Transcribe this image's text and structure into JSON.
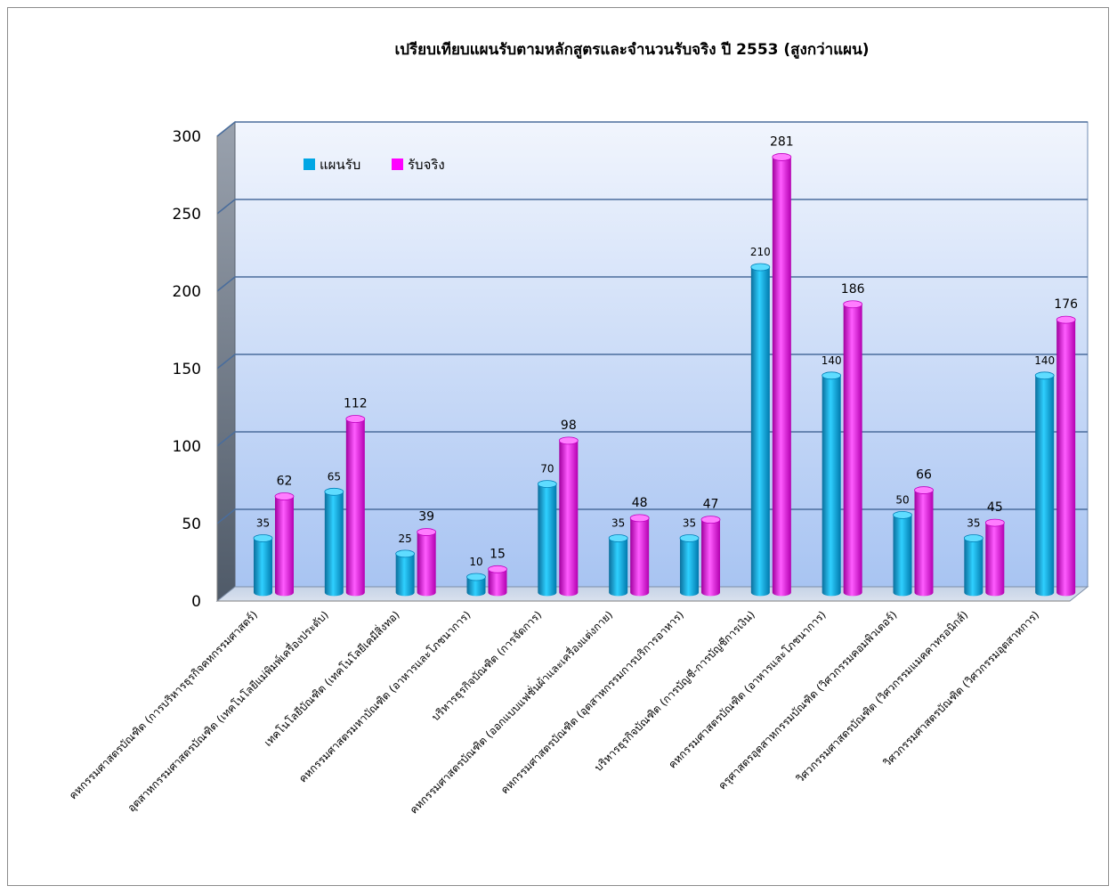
{
  "chart_data": {
    "type": "bar",
    "title": "เปรียบเทียบแผนรับตามหลักสูตรและจำนวนรับจริง ปี 2553 (สูงกว่าแผน)",
    "xlabel": "",
    "ylabel": "",
    "ylim": [
      0,
      300
    ],
    "yticks": [
      "0",
      "50",
      "100",
      "150",
      "200",
      "250",
      "300"
    ],
    "grid": true,
    "legend_position": "top-left",
    "categories": [
      "คหกรรมศาสตรบัณฑิต (การบริหารธุรกิจคหกรรมศาสตร์)",
      "อุตสาหกรรมศาสตรบัณฑิต (เทคโนโลยีแม่พิมพ์เครื่องประดับ)",
      "เทคโนโลยีบัณฑิต (เทคโนโลยีเคมีสิ่งทอ)",
      "คหกรรมศาสตรมหาบัณฑิต (อาหารและโภชนาการ)",
      "บริหารธุรกิจบัณฑิต (การจัดการ)",
      "คหกรรมศาสตรบัณฑิต (ออกแบบแฟชั่นผ้าและเครื่องแต่งกาย)",
      "คหกรรมศาสตรบัณฑิต (อุตสาหกรรมการบริการอาหาร)",
      "บริหารธุรกิจบัณฑิต (การบัญชี-การบัญชีการเงิน)",
      "คหกรรมศาสตรบัณฑิต (อาหารและโภชนาการ)",
      "ครุศาสตรอุตสาหกรรมบัณฑิต (วิศวกรรมคอมพิวเตอร์)",
      "วิศวกรรมศาสตรบัณฑิต (วิศวกรรมแมคคาทรอนิกส์)",
      "วิศวกรรมศาสตรบัณฑิต (วิศวกรรมอุตสาหการ)"
    ],
    "series": [
      {
        "name": "แผนรับ",
        "color": "#00a6e4",
        "values": [
          35,
          65,
          25,
          10,
          70,
          35,
          35,
          210,
          140,
          50,
          35,
          140
        ],
        "labels": [
          "35",
          "65",
          "25",
          "10",
          "70",
          "35",
          "35",
          "210",
          "140",
          "50",
          "35",
          "140"
        ]
      },
      {
        "name": "รับจริง",
        "color": "#ff00ff",
        "values": [
          62,
          112,
          39,
          15,
          98,
          48,
          47,
          281,
          186,
          66,
          45,
          176
        ],
        "labels": [
          "62",
          "112",
          "39",
          "15",
          "98",
          "48",
          "47",
          "281",
          "186",
          "66",
          "45",
          "176"
        ]
      }
    ]
  }
}
